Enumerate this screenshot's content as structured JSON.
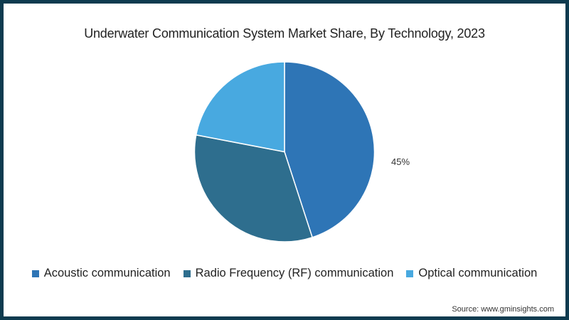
{
  "chart_data": {
    "type": "pie",
    "title": "Underwater Communication System Market Share, By Technology, 2023",
    "categories": [
      "Acoustic communication",
      "Radio Frequency (RF) communication",
      "Optical communication"
    ],
    "values": [
      45,
      33,
      22
    ],
    "colors": [
      "#2e75b6",
      "#2e6e8e",
      "#48a9e0"
    ],
    "data_labels": [
      {
        "category": "Acoustic communication",
        "label": "45%"
      }
    ],
    "legend_position": "bottom",
    "start_angle_deg": 0,
    "direction": "clockwise"
  },
  "title": "Underwater Communication System Market Share, By Technology, 2023",
  "slice_label": "45%",
  "legend": [
    {
      "label": "Acoustic communication",
      "color": "#2e75b6"
    },
    {
      "label": "Radio Frequency (RF) communication",
      "color": "#2e6e8e"
    },
    {
      "label": "Optical communication",
      "color": "#48a9e0"
    }
  ],
  "source": "Source: www.gminsights.com"
}
